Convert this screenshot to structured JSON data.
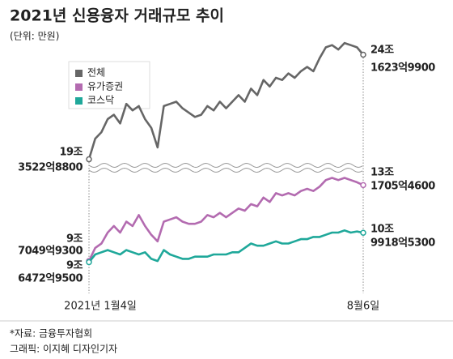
{
  "chart_data": {
    "type": "line",
    "title": "2021년 신용융자 거래규모 추이",
    "subtitle": "(단위: 만원)",
    "source": "*자료: 금융투자협회",
    "credit": "그래픽: 이지혜 디자인기자",
    "categories": [
      "2021년 1월4일",
      null,
      null,
      null,
      null,
      null,
      null,
      null,
      null,
      null,
      null,
      null,
      null,
      null,
      null,
      null,
      null,
      null,
      null,
      null,
      null,
      null,
      null,
      null,
      null,
      null,
      null,
      null,
      null,
      null,
      null,
      null,
      null,
      null,
      null,
      null,
      null,
      null,
      null,
      null,
      null,
      null,
      null,
      null,
      "8월6일"
    ],
    "ylim": [
      9,
      13.5
    ],
    "y2lim": [
      19,
      25
    ],
    "legend": "upper left",
    "series": [
      {
        "name": "전체",
        "color": "#666666",
        "axis": "y2",
        "values": [
          19.352288,
          20.3,
          20.6,
          21.2,
          21.4,
          21.0,
          21.9,
          21.6,
          21.8,
          21.2,
          20.8,
          19.9,
          21.8,
          21.9,
          22.0,
          21.7,
          21.5,
          21.3,
          21.4,
          21.8,
          21.6,
          22.0,
          21.7,
          22.0,
          22.3,
          22.0,
          22.6,
          22.3,
          23.0,
          22.7,
          23.1,
          23.0,
          23.3,
          23.1,
          23.4,
          23.6,
          23.4,
          24.0,
          24.5,
          24.6,
          24.4,
          24.7,
          24.6,
          24.5,
          24.162399
        ],
        "value_labels": [
          [
            "19조",
            "3522억8800"
          ],
          null,
          null,
          null,
          null,
          null,
          null,
          null,
          null,
          null,
          null,
          null,
          null,
          null,
          null,
          null,
          null,
          null,
          null,
          null,
          null,
          null,
          null,
          null,
          null,
          null,
          null,
          null,
          null,
          null,
          null,
          null,
          null,
          null,
          null,
          null,
          null,
          null,
          null,
          null,
          null,
          null,
          null,
          null,
          [
            "24조",
            "1623억9900"
          ]
        ]
      },
      {
        "name": "유가증권",
        "color": "#b36bb0",
        "values": [
          9.704993,
          10.3,
          10.5,
          11.0,
          11.3,
          11.0,
          11.5,
          11.3,
          11.8,
          11.3,
          10.9,
          10.6,
          11.5,
          11.6,
          11.7,
          11.5,
          11.4,
          11.4,
          11.5,
          11.8,
          11.7,
          11.9,
          11.7,
          11.9,
          12.1,
          12.0,
          12.3,
          12.2,
          12.6,
          12.4,
          12.8,
          12.7,
          12.8,
          12.7,
          12.9,
          13.0,
          12.9,
          13.1,
          13.4,
          13.5,
          13.4,
          13.5,
          13.4,
          13.3,
          13.170546
        ],
        "value_labels": [
          [
            "9조",
            "7049억9300"
          ],
          null,
          null,
          null,
          null,
          null,
          null,
          null,
          null,
          null,
          null,
          null,
          null,
          null,
          null,
          null,
          null,
          null,
          null,
          null,
          null,
          null,
          null,
          null,
          null,
          null,
          null,
          null,
          null,
          null,
          null,
          null,
          null,
          null,
          null,
          null,
          null,
          null,
          null,
          null,
          null,
          null,
          null,
          null,
          [
            "13조",
            "1705억4600"
          ]
        ]
      },
      {
        "name": "코스닥",
        "color": "#1fa89a",
        "values": [
          9.647295,
          10.0,
          10.1,
          10.2,
          10.1,
          10.0,
          10.2,
          10.1,
          10.0,
          10.1,
          9.8,
          9.7,
          10.2,
          10.0,
          9.9,
          9.8,
          9.8,
          9.9,
          9.9,
          9.9,
          10.0,
          10.0,
          10.0,
          10.1,
          10.1,
          10.3,
          10.5,
          10.4,
          10.4,
          10.5,
          10.6,
          10.5,
          10.5,
          10.6,
          10.7,
          10.7,
          10.8,
          10.8,
          10.9,
          11.0,
          11.0,
          11.1,
          11.0,
          11.05,
          10.991853
        ],
        "value_labels": [
          [
            "9조",
            "6472억9500"
          ],
          null,
          null,
          null,
          null,
          null,
          null,
          null,
          null,
          null,
          null,
          null,
          null,
          null,
          null,
          null,
          null,
          null,
          null,
          null,
          null,
          null,
          null,
          null,
          null,
          null,
          null,
          null,
          null,
          null,
          null,
          null,
          null,
          null,
          null,
          null,
          null,
          null,
          null,
          null,
          null,
          null,
          null,
          null,
          [
            "10조",
            "9918억5300"
          ]
        ]
      }
    ]
  }
}
